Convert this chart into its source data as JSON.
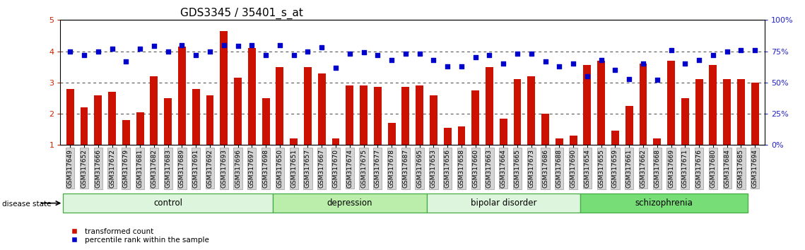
{
  "title": "GDS3345 / 35401_s_at",
  "samples": [
    "GSM317649",
    "GSM317652",
    "GSM317666",
    "GSM317672",
    "GSM317679",
    "GSM317681",
    "GSM317682",
    "GSM317683",
    "GSM317689",
    "GSM317691",
    "GSM317692",
    "GSM317693",
    "GSM317696",
    "GSM317697",
    "GSM317698",
    "GSM317650",
    "GSM317651",
    "GSM317657",
    "GSM317667",
    "GSM317670",
    "GSM317674",
    "GSM317675",
    "GSM317677",
    "GSM317678",
    "GSM317687",
    "GSM317695",
    "GSM317653",
    "GSM317656",
    "GSM317658",
    "GSM317660",
    "GSM317663",
    "GSM317664",
    "GSM317665",
    "GSM317673",
    "GSM317686",
    "GSM317688",
    "GSM317690",
    "GSM317654",
    "GSM317655",
    "GSM317659",
    "GSM317661",
    "GSM317662",
    "GSM317668",
    "GSM317669",
    "GSM317671",
    "GSM317676",
    "GSM317680",
    "GSM317684",
    "GSM317685",
    "GSM317694"
  ],
  "bar_values": [
    2.8,
    2.2,
    2.6,
    2.7,
    1.8,
    2.05,
    3.2,
    2.5,
    4.15,
    2.8,
    2.6,
    4.65,
    3.15,
    4.1,
    2.5,
    3.5,
    1.2,
    3.5,
    3.3,
    1.2,
    2.9,
    2.9,
    2.85,
    1.7,
    2.85,
    2.9,
    2.6,
    1.55,
    1.6,
    2.75,
    3.5,
    1.85,
    3.1,
    3.2,
    2.0,
    1.2,
    1.3,
    3.55,
    3.7,
    1.45,
    2.25,
    3.6,
    1.2,
    3.7,
    2.5,
    3.1,
    3.55,
    3.1,
    3.1,
    3.0
  ],
  "dot_values_pct": [
    75,
    72,
    75,
    77,
    67,
    77,
    79,
    75,
    80,
    72,
    75,
    80,
    79,
    80,
    72,
    80,
    72,
    75,
    78,
    62,
    73,
    74,
    72,
    68,
    73,
    73,
    68,
    63,
    63,
    70,
    72,
    65,
    73,
    73,
    67,
    63,
    65,
    55,
    68,
    60,
    53,
    65,
    52,
    76,
    65,
    68,
    72,
    75,
    76,
    76
  ],
  "groups": [
    {
      "name": "control",
      "start": 0,
      "end": 15,
      "color": "#ddf5dd"
    },
    {
      "name": "depression",
      "start": 15,
      "end": 26,
      "color": "#bbeeaa"
    },
    {
      "name": "bipolar disorder",
      "start": 26,
      "end": 37,
      "color": "#ddf5dd"
    },
    {
      "name": "schizophrenia",
      "start": 37,
      "end": 49,
      "color": "#77dd77"
    }
  ],
  "ylim_left": [
    1,
    5
  ],
  "ylim_right": [
    0,
    100
  ],
  "yticks_left": [
    1,
    2,
    3,
    4,
    5
  ],
  "yticks_right": [
    0,
    25,
    50,
    75,
    100
  ],
  "bar_color": "#cc1100",
  "dot_color": "#0000cc",
  "grid_color": "#444444",
  "tick_label_color": "#cc2200",
  "right_tick_color": "#2222cc",
  "bg_color": "#ffffff",
  "bar_width": 0.55,
  "dot_size": 20,
  "xlabel_fontsize": 6.5,
  "title_fontsize": 11,
  "legend_fontsize": 7.5,
  "group_fontsize": 8.5,
  "disease_state_label": "disease state"
}
